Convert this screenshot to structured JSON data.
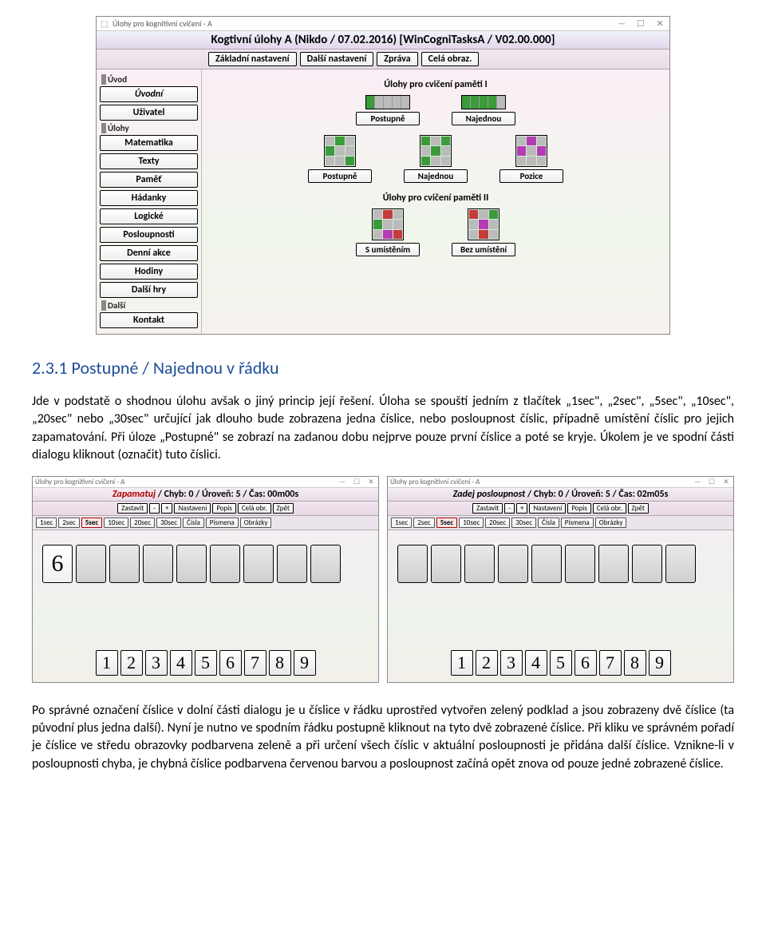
{
  "app_window": {
    "chrome_title": "Úlohy pro kognitivní cvičení - A",
    "header": "Kogtivní úlohy A (Nikdo / 07.02.2016) [WinCogniTasksA / V02.00.000]",
    "top_tabs": [
      "Základní nastavení",
      "Další nastavení",
      "Zpráva",
      "Celá obraz."
    ],
    "sidebar": {
      "groups": [
        {
          "label": "Úvod",
          "items": [
            "Úvodní",
            "Uživatel"
          ]
        },
        {
          "label": "Úlohy",
          "items": [
            "Matematika",
            "Texty",
            "Paměť",
            "Hádanky",
            "Logické",
            "Posloupnosti",
            "Denní akce",
            "Hodiny",
            "Další hry"
          ]
        },
        {
          "label": "Další",
          "items": [
            "Kontakt"
          ]
        }
      ]
    },
    "panel": {
      "sec1_title": "Úlohy pro cvičení paměti I",
      "row1": [
        {
          "label": "Postupně"
        },
        {
          "label": "Najednou"
        }
      ],
      "row2": [
        {
          "label": "Postupně"
        },
        {
          "label": "Najednou"
        },
        {
          "label": "Pozice"
        }
      ],
      "sec2_title": "Úlohy pro cvičení paměti II",
      "row3": [
        {
          "label": "S umístěním"
        },
        {
          "label": "Bez umístění"
        }
      ]
    }
  },
  "doc": {
    "sec_heading": "2.3.1   Postupné / Najednou v řádku",
    "p1": "Jde v podstatě o shodnou úlohu avšak o jiný princip její řešení. Úloha se spouští jedním z tlačítek „1sec\", „2sec\", „5sec\", „10sec\", „20sec\" nebo „30sec\" určující jak dlouho bude zobrazena jedna číslice, nebo posloupnost číslic, případně umístění číslic pro jejich zapamatování. Při úloze „Postupné\" se zobrazí na zadanou dobu nejprve pouze první číslice a poté se kryje. Úkolem je ve spodní části dialogu kliknout (označit) tuto číslici.",
    "p2": "Po správné označení číslice v dolní části dialogu je u číslice v řádku uprostřed vytvořen zelený podklad a jsou zobrazeny dvě číslice (ta původní plus jedna další). Nyní je nutno ve spodním řádku postupně kliknout na tyto dvě zobrazené číslice. Při kliku ve správném pořadí je číslice ve středu obrazovky podbarvena zeleně a při určení všech číslic v aktuální posloupnosti je přidána další číslice. Vznikne-li v posloupnosti chyba, je chybná číslice podbarvena červenou barvou a posloupnost začíná opět znova od pouze jedné zobrazené číslice."
  },
  "mem": {
    "chrome_title": "Úlohy pro kognitivní cvičení - A",
    "toolbar": [
      "Zastavit",
      "-",
      "+",
      "Nastavení",
      "Popis",
      "Celá obr.",
      "Zpět"
    ],
    "time_buttons": [
      "1sec",
      "2sec",
      "5sec",
      "10sec",
      "20sec",
      "30sec",
      "Čísla",
      "Písmena",
      "Obrázky"
    ],
    "time_selected_index": 2,
    "left": {
      "mode": "Zapamatuj",
      "stats": "/ Chyb: 0 / Úroveň: 5 / Čas: 00m00s",
      "shown_digit": "6",
      "slot_count": 9,
      "keypad": [
        "1",
        "2",
        "3",
        "4",
        "5",
        "6",
        "7",
        "8",
        "9"
      ]
    },
    "right": {
      "mode": "Zadej posloupnost",
      "stats": "/ Chyb: 0 / Úroveň: 5 / Čas: 02m05s",
      "slot_count": 9,
      "keypad": [
        "1",
        "2",
        "3",
        "4",
        "5",
        "6",
        "7",
        "8",
        "9"
      ]
    }
  }
}
